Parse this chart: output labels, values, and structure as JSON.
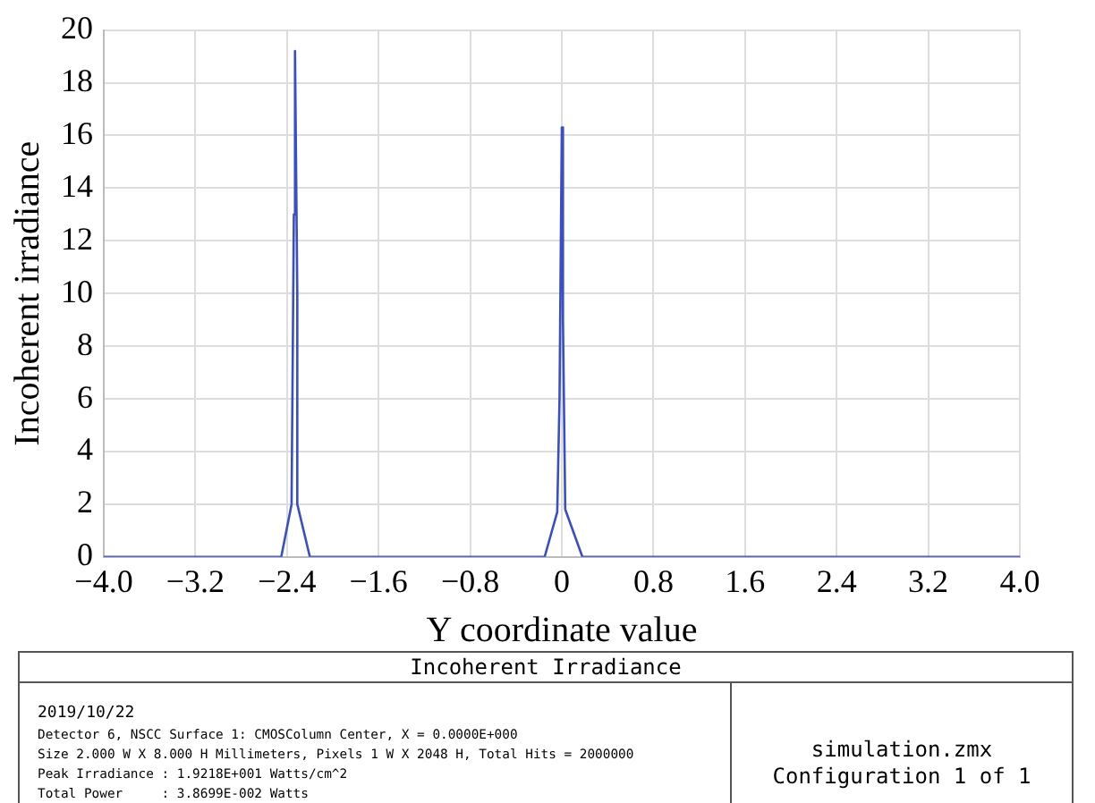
{
  "chart_data": {
    "type": "line",
    "title": "Incoherent Irradiance",
    "xlabel": "Y coordinate value",
    "ylabel": "Incoherent irradiance",
    "x": [
      -4.0,
      -2.45,
      -2.36,
      -2.34,
      -2.33,
      -2.31,
      -2.31,
      -2.2,
      -0.15,
      -0.04,
      -0.02,
      0.0,
      0.01,
      0.03,
      0.18,
      4.0
    ],
    "series": [
      {
        "color": "#3a4fc4",
        "values": [
          0,
          0,
          2.0,
          13,
          19.2,
          10,
          2.0,
          0,
          0,
          1.7,
          6,
          16.3,
          9,
          1.8,
          0,
          0
        ]
      }
    ],
    "xlim": [
      -4.0,
      4.0
    ],
    "xticks": [
      {
        "value": -4.0,
        "label": "−4.0"
      },
      {
        "value": -3.2,
        "label": "−3.2"
      },
      {
        "value": -2.4,
        "label": "−2.4"
      },
      {
        "value": -1.6,
        "label": "−1.6"
      },
      {
        "value": -0.8,
        "label": "−0.8"
      },
      0,
      {
        "value": 0.8,
        "label": "0.8"
      },
      {
        "value": 1.6,
        "label": "1.6"
      },
      {
        "value": 2.4,
        "label": "2.4"
      },
      {
        "value": 3.2,
        "label": "3.2"
      },
      {
        "value": 4.0,
        "label": "4.0"
      }
    ],
    "ylim": [
      0,
      20
    ],
    "yticks": [
      0,
      2,
      4,
      6,
      8,
      10,
      12,
      14,
      16,
      18,
      20
    ],
    "grid": true,
    "legend": false,
    "marker": "none",
    "line_style": "solid",
    "annotations": [
      "2019/10/22",
      "Detector 6, NSCC Surface 1: CMOSColumn Center, X = 0.0000E+000",
      "Size 2.000 W X 8.000 H Millimeters, Pixels 1 W X 2048 H, Total Hits = 2000000",
      "Peak Irradiance : 1.9218E+001 Watts/cm^2",
      "Total Power     : 3.8699E-002 Watts",
      "simulation.zmx",
      "Configuration 1 of 1"
    ]
  }
}
